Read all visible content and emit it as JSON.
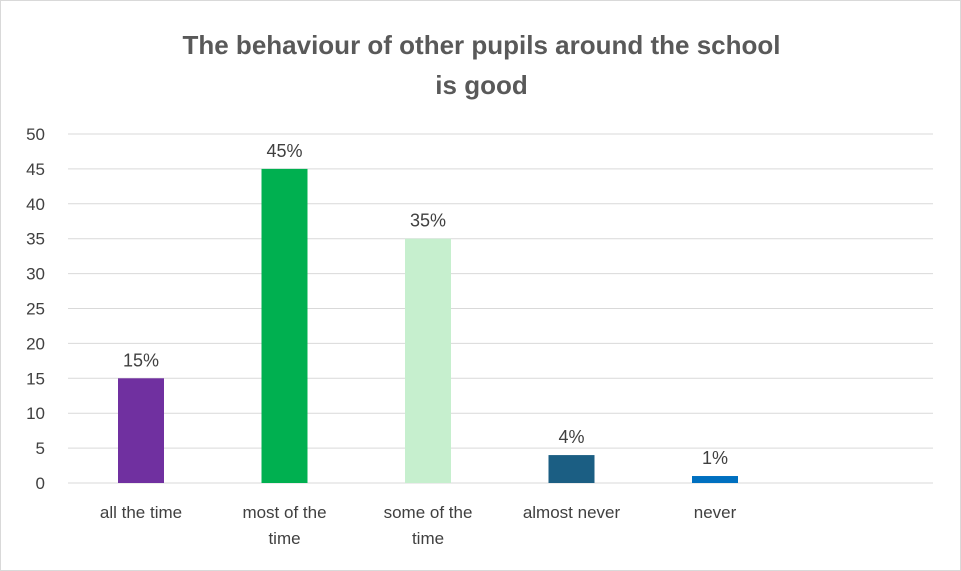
{
  "chart_data": {
    "type": "bar",
    "title": "The behaviour of other pupils around the school\nis good",
    "categories": [
      "all the time",
      "most of the time",
      "some of the time",
      "almost never",
      "never"
    ],
    "category_lines": [
      [
        "all the time"
      ],
      [
        "most of the",
        "time"
      ],
      [
        "some of the",
        "time"
      ],
      [
        "almost never"
      ],
      [
        "never"
      ]
    ],
    "values": [
      15,
      45,
      35,
      4,
      1
    ],
    "data_labels": [
      "15%",
      "45%",
      "35%",
      "4%",
      "1%"
    ],
    "bar_colors": [
      "#7030a0",
      "#00b050",
      "#c6efce",
      "#1b5e83",
      "#0070c0"
    ],
    "ylim": [
      0,
      50
    ],
    "yticks": [
      0,
      5,
      10,
      15,
      20,
      25,
      30,
      35,
      40,
      45,
      50
    ],
    "grid": true,
    "legend": "none"
  }
}
